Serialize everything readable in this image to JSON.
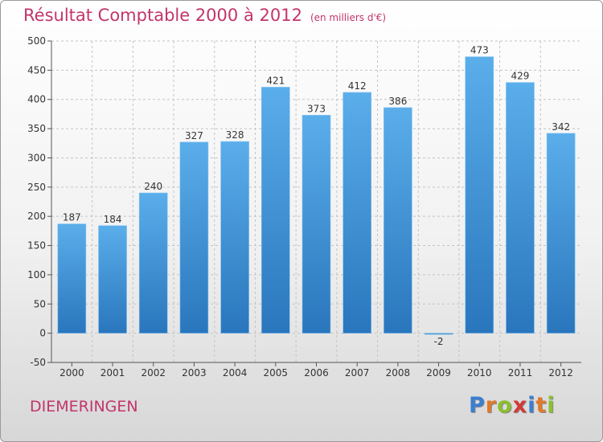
{
  "header": {
    "title": "Résultat Comptable 2000 à 2012",
    "subtitle": "(en milliers d'€)"
  },
  "footer": {
    "commune": "DIEMERINGEN",
    "logo_letters": [
      "P",
      "r",
      "o",
      "x",
      "i",
      "t",
      "i"
    ],
    "logo_colors": [
      "#3b7fd0",
      "#e0792a",
      "#8bbf2d",
      "#d23a3a",
      "#3b7fd0",
      "#e0792a",
      "#8bbf2d"
    ]
  },
  "chart_data": {
    "type": "bar",
    "title": "Résultat Comptable 2000 à 2012",
    "subtitle": "(en milliers d'€)",
    "categories": [
      "2000",
      "2001",
      "2002",
      "2003",
      "2004",
      "2005",
      "2006",
      "2007",
      "2008",
      "2009",
      "2010",
      "2011",
      "2012"
    ],
    "values": [
      187,
      184,
      240,
      327,
      328,
      421,
      373,
      412,
      386,
      -2,
      473,
      429,
      342
    ],
    "value_labels": [
      "187",
      "184",
      "240",
      "327",
      "328",
      "421",
      "373",
      "412",
      "386",
      "-2",
      "473",
      "429",
      "342"
    ],
    "ylim": [
      -50,
      500
    ],
    "yticks": [
      -50,
      0,
      50,
      100,
      150,
      200,
      250,
      300,
      350,
      400,
      450,
      500
    ],
    "ytick_labels": [
      "-50",
      "0",
      "50",
      "100",
      "150",
      "200",
      "250",
      "300",
      "350",
      "400",
      "450",
      "500"
    ],
    "grid": true,
    "bar_color": "#3a8fd4"
  }
}
